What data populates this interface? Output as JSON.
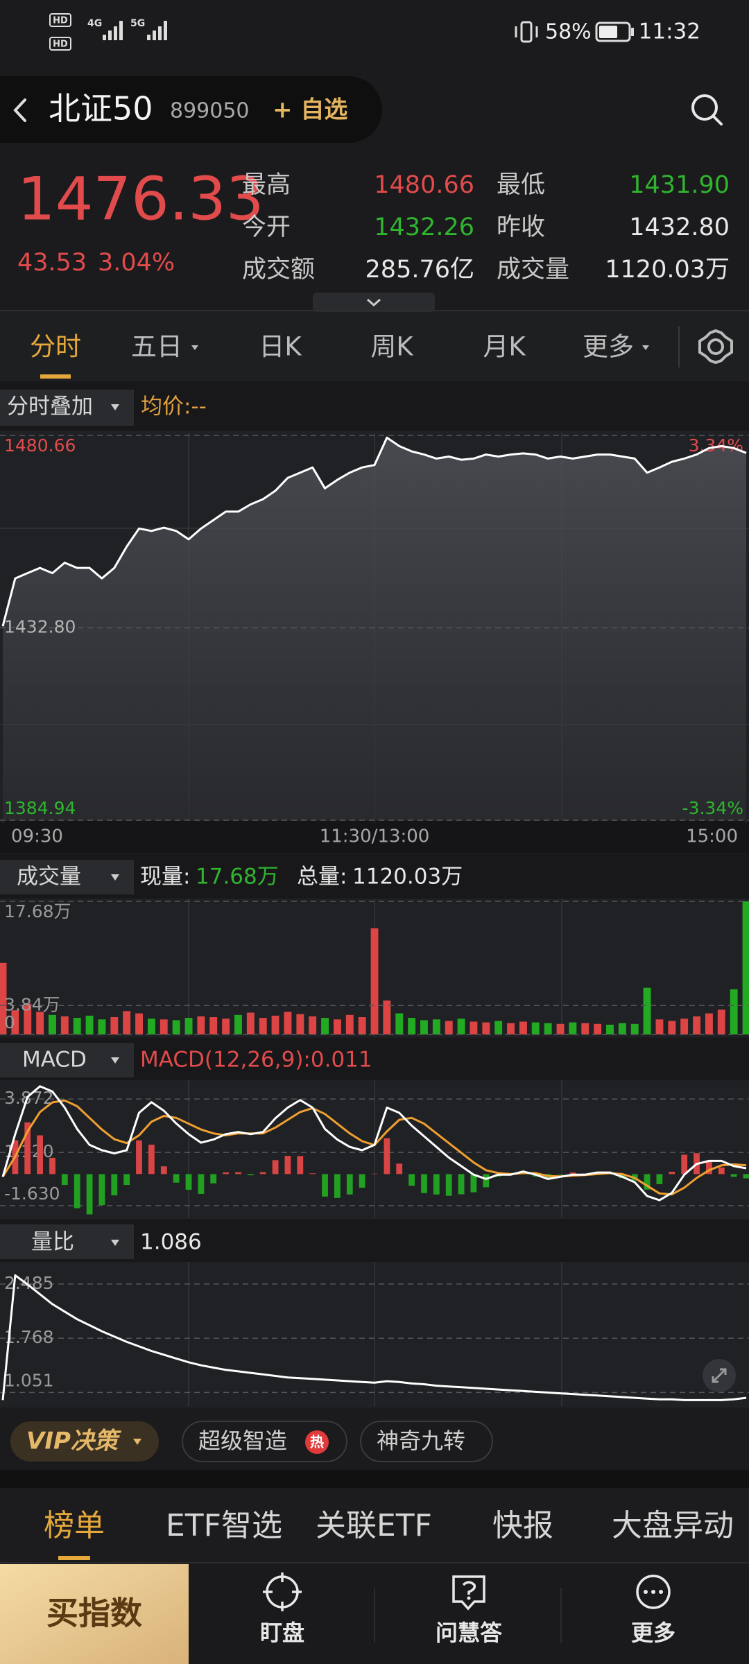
{
  "status_bar": {
    "hd": "HD",
    "signal": [
      "4G",
      "5G"
    ],
    "battery": "58%",
    "time": "11:32"
  },
  "header": {
    "title": "北证50",
    "code": "899050",
    "watch": "+ 自选"
  },
  "quote": {
    "price": "1476.33",
    "change": "43.53",
    "change_pct": "3.04%",
    "stats": [
      {
        "label": "最高",
        "value": "1480.66",
        "color": "#e24b4b"
      },
      {
        "label": "最低",
        "value": "1431.90",
        "color": "#2fb52f"
      },
      {
        "label": "今开",
        "value": "1432.26",
        "color": "#2fb52f"
      },
      {
        "label": "昨收",
        "value": "1432.80",
        "color": "#e8e8e8"
      },
      {
        "label": "成交额",
        "value": "285.76亿",
        "color": "#e8e8e8"
      },
      {
        "label": "成交量",
        "value": "1120.03万",
        "color": "#e8e8e8"
      }
    ]
  },
  "tabs": {
    "items": [
      "分时",
      "五日",
      "日K",
      "周K",
      "月K",
      "更多"
    ],
    "active": 0
  },
  "overlay_bar": {
    "overlay": "分时叠加",
    "avg": "均价:--"
  },
  "chart_data": [
    {
      "type": "line",
      "color": "#ffffff",
      "area": true,
      "values": [
        1433.2,
        1445.1,
        1446.4,
        1447.7,
        1446.4,
        1449.0,
        1447.7,
        1447.7,
        1445.1,
        1447.7,
        1453.0,
        1457.5,
        1456.9,
        1457.7,
        1456.9,
        1454.8,
        1457.5,
        1459.6,
        1461.7,
        1461.7,
        1463.5,
        1464.8,
        1466.9,
        1470.1,
        1471.4,
        1472.7,
        1467.5,
        1469.6,
        1471.4,
        1472.7,
        1473.3,
        1480.1,
        1478.0,
        1476.7,
        1475.9,
        1474.9,
        1475.4,
        1474.6,
        1474.9,
        1475.9,
        1475.4,
        1475.9,
        1476.2,
        1475.9,
        1474.9,
        1475.4,
        1474.9,
        1475.4,
        1475.9,
        1475.9,
        1475.4,
        1474.9,
        1471.4,
        1472.7,
        1474.1,
        1474.9,
        1475.9,
        1477.5,
        1478.0,
        1477.5,
        1476.3
      ],
      "xlim": [
        0,
        60
      ],
      "xticks": [
        {
          "value": 0,
          "label": "09:30"
        },
        {
          "value": 30,
          "label": "11:30/13:00"
        },
        {
          "value": 60,
          "label": "15:00"
        }
      ],
      "ylim": [
        1384.94,
        1480.66
      ],
      "yticks": [
        1384.94,
        {
          "value": 1432.8,
          "label": "1432.80"
        },
        1480.66
      ],
      "ytick_colors": [
        "#2fb52f",
        "#b4b4b4",
        "#e24b4b"
      ],
      "y2lim": [
        -3.34,
        3.34
      ],
      "y2ticks": [
        {
          "value": -3.34,
          "label": "-3.34%"
        },
        {
          "value": 3.34,
          "label": "3.34%"
        }
      ],
      "y2tick_colors": [
        "#2fb52f",
        "#e24b4b"
      ]
    },
    {
      "type": "bar",
      "title": "成交量",
      "current_label": "现量:",
      "current": "17.68万",
      "total_label": "总量:",
      "total": "1120.03万",
      "values": [
        9.5,
        3.2,
        4.1,
        3.0,
        2.6,
        2.4,
        2.2,
        2.5,
        2.0,
        2.3,
        3.1,
        2.8,
        2.1,
        2.0,
        1.9,
        2.2,
        2.4,
        2.3,
        2.1,
        2.6,
        2.9,
        2.2,
        2.5,
        3.0,
        2.7,
        2.4,
        2.2,
        2.0,
        2.6,
        2.3,
        14.1,
        4.5,
        2.8,
        2.2,
        1.9,
        2.0,
        1.8,
        2.1,
        1.7,
        1.6,
        1.8,
        1.5,
        1.7,
        1.6,
        1.5,
        1.4,
        1.6,
        1.5,
        1.4,
        1.3,
        1.5,
        1.4,
        6.2,
        2.0,
        1.8,
        2.1,
        2.4,
        2.8,
        3.3,
        6.0,
        17.68
      ],
      "colors": [
        "#d44",
        "#d44",
        "#d44",
        "#d44",
        "#2a2",
        "#d44",
        "#2a2",
        "#2a2",
        "#2a2",
        "#d44",
        "#d44",
        "#d44",
        "#2a2",
        "#d44",
        "#2a2",
        "#2a2",
        "#d44",
        "#d44",
        "#d44",
        "#2a2",
        "#d44",
        "#d44",
        "#d44",
        "#d44",
        "#d44",
        "#d44",
        "#2a2",
        "#d44",
        "#d44",
        "#d44",
        "#d44",
        "#d44",
        "#2a2",
        "#2a2",
        "#2a2",
        "#2a2",
        "#d44",
        "#2a2",
        "#d44",
        "#d44",
        "#2a2",
        "#d44",
        "#d44",
        "#2a2",
        "#2a2",
        "#d44",
        "#2a2",
        "#d44",
        "#d44",
        "#2a2",
        "#2a2",
        "#2a2",
        "#2a2",
        "#d44",
        "#d44",
        "#d44",
        "#d44",
        "#d44",
        "#d44",
        "#2a2",
        "#2a2"
      ],
      "xlim": [
        0,
        60
      ],
      "ylim": [
        0,
        17.68
      ],
      "yticks": [
        0,
        {
          "value": 3.84,
          "label": "3.84万"
        },
        {
          "value": 17.68,
          "label": "17.68万"
        }
      ]
    },
    {
      "type": "macd",
      "title": "MACD",
      "subtitle": "MACD(12,26,9):0.011",
      "dif": {
        "color": "#ffffff",
        "values": [
          -0.14,
          2.06,
          3.98,
          4.53,
          4.26,
          3.43,
          2.33,
          1.51,
          1.23,
          1.07,
          1.23,
          3.16,
          3.71,
          3.27,
          2.61,
          2.06,
          1.62,
          1.78,
          2.06,
          2.17,
          2.06,
          2.17,
          2.88,
          3.43,
          3.82,
          3.43,
          2.33,
          1.78,
          1.4,
          1.23,
          1.51,
          3.43,
          3.16,
          2.5,
          1.95,
          1.4,
          0.85,
          0.41,
          -0.03,
          -0.25,
          -0.03,
          -0.03,
          0.13,
          -0.03,
          -0.25,
          -0.14,
          -0.03,
          -0.03,
          0.08,
          0.08,
          -0.14,
          -0.42,
          -1.13,
          -1.35,
          -0.97,
          -0.03,
          0.52,
          0.68,
          0.68,
          0.41,
          0.3
        ]
      },
      "dea": {
        "color": "#f0a030",
        "values": [
          -0.14,
          0.9,
          2.2,
          3.2,
          3.7,
          3.8,
          3.5,
          2.9,
          2.3,
          1.8,
          1.6,
          2.0,
          2.7,
          3.0,
          2.9,
          2.6,
          2.3,
          2.1,
          2.0,
          2.1,
          2.1,
          2.1,
          2.4,
          2.8,
          3.2,
          3.4,
          3.1,
          2.6,
          2.1,
          1.7,
          1.5,
          2.2,
          2.8,
          2.9,
          2.6,
          2.1,
          1.6,
          1.1,
          0.6,
          0.2,
          0.05,
          0.0,
          0.05,
          0.05,
          -0.1,
          -0.12,
          -0.08,
          -0.05,
          0.0,
          0.05,
          0.0,
          -0.2,
          -0.6,
          -1.0,
          -1.05,
          -0.7,
          -0.2,
          0.2,
          0.45,
          0.5,
          0.45
        ]
      },
      "histogram": {
        "up_color": "#d94444",
        "down_color": "#22a022",
        "values": [
          0,
          1.74,
          2.67,
          2.0,
          0.84,
          -0.56,
          -1.76,
          -2.08,
          -1.6,
          -1.1,
          -0.56,
          1.74,
          1.52,
          0.4,
          -0.44,
          -0.81,
          -1.02,
          -0.48,
          0.09,
          0.1,
          -0.06,
          0.1,
          0.72,
          0.94,
          0.93,
          0.04,
          -1.16,
          -1.23,
          -1.05,
          -0.7,
          0.02,
          1.85,
          0.54,
          -0.6,
          -0.98,
          -1.05,
          -1.12,
          -1.04,
          -0.94,
          -0.68,
          -0.12,
          -0.04,
          0.12,
          -0.12,
          -0.22,
          -0.03,
          0.08,
          0.03,
          0.12,
          0.04,
          -0.21,
          -0.33,
          -0.8,
          -0.52,
          0.12,
          1.0,
          1.08,
          0.72,
          0.34,
          -0.14,
          -0.22
        ]
      },
      "xlim": [
        0,
        60
      ],
      "ylim": [
        -2.24,
        4.7
      ],
      "yticks": [
        {
          "value": -1.63,
          "label": "-1.630"
        },
        {
          "value": 1.12,
          "label": "1.120"
        },
        3.872
      ]
    },
    {
      "type": "line",
      "title": "量比",
      "subtitle": "1.086",
      "color": "#ffffff",
      "area": false,
      "values": [
        0.95,
        2.6,
        2.48,
        2.35,
        2.22,
        2.12,
        2.02,
        1.94,
        1.86,
        1.79,
        1.72,
        1.66,
        1.6,
        1.55,
        1.5,
        1.45,
        1.41,
        1.38,
        1.35,
        1.33,
        1.31,
        1.29,
        1.27,
        1.25,
        1.24,
        1.23,
        1.22,
        1.21,
        1.2,
        1.19,
        1.18,
        1.2,
        1.19,
        1.17,
        1.16,
        1.14,
        1.13,
        1.12,
        1.11,
        1.1,
        1.09,
        1.08,
        1.07,
        1.06,
        1.05,
        1.04,
        1.03,
        1.02,
        1.01,
        1.0,
        0.99,
        0.98,
        0.97,
        0.96,
        0.96,
        0.95,
        0.95,
        0.95,
        0.95,
        0.96,
        0.98
      ],
      "xlim": [
        0,
        60
      ],
      "ylim": [
        0.88,
        2.76
      ],
      "yticks": [
        1.051,
        1.768,
        2.485
      ]
    }
  ],
  "chips": [
    "VIP决策",
    "超级智造",
    "神奇九转"
  ],
  "hot_badge": "热",
  "section_tabs": {
    "items": [
      "榜单",
      "ETF智选",
      "关联ETF",
      "快报",
      "大盘异动"
    ],
    "active": 0
  },
  "nav": {
    "buy": "买指数",
    "items": [
      "盯盘",
      "问慧答",
      "更多"
    ]
  }
}
